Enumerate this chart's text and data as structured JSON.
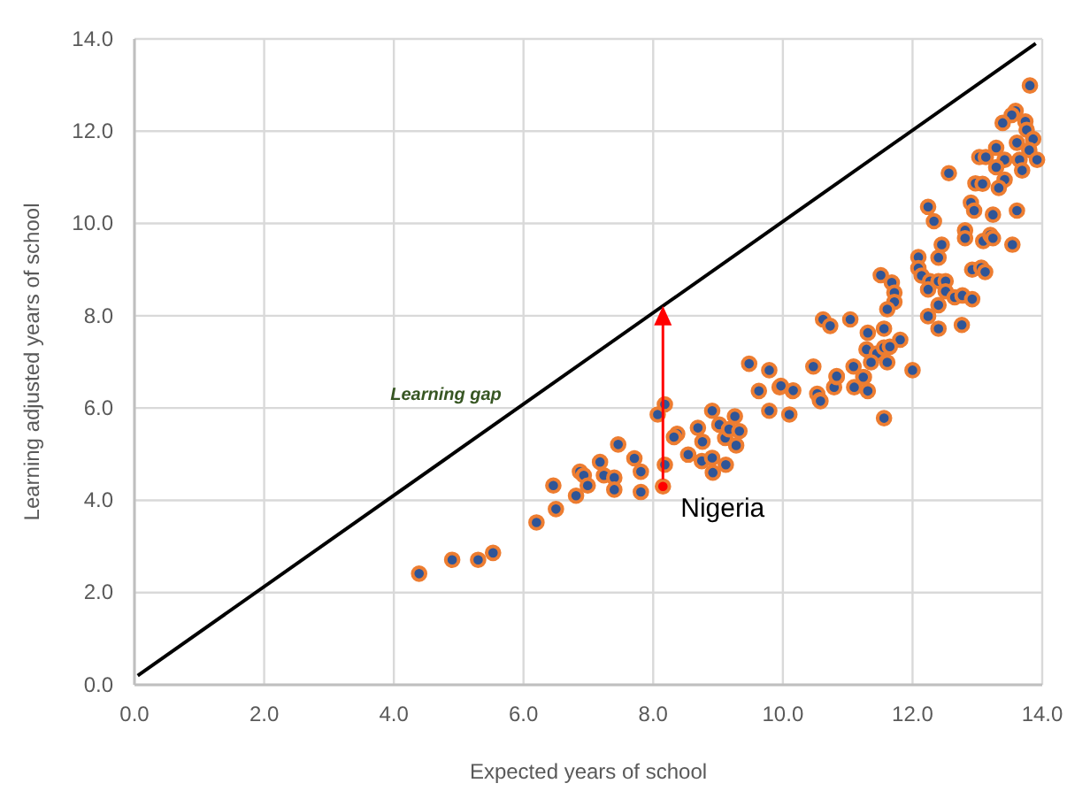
{
  "chart_data": {
    "type": "scatter",
    "xlabel": "Expected  years of school",
    "ylabel": "Learning adjusted years of school",
    "xlim": [
      0,
      14
    ],
    "ylim": [
      0,
      14
    ],
    "xticks": [
      {
        "value": 0,
        "label": "0.0"
      },
      {
        "value": 2,
        "label": "2.0"
      },
      {
        "value": 4,
        "label": "4.0"
      },
      {
        "value": 6,
        "label": "6.0"
      },
      {
        "value": 8,
        "label": "8.0"
      },
      {
        "value": 10,
        "label": "10.0"
      },
      {
        "value": 12,
        "label": "12.0"
      },
      {
        "value": 14,
        "label": "14.0"
      }
    ],
    "yticks": [
      {
        "value": 0,
        "label": "0.0"
      },
      {
        "value": 2,
        "label": "2.0"
      },
      {
        "value": 4,
        "label": "4.0"
      },
      {
        "value": 6,
        "label": "6.0"
      },
      {
        "value": 8,
        "label": "8.0"
      },
      {
        "value": 10,
        "label": "10.0"
      },
      {
        "value": 12,
        "label": "12.0"
      },
      {
        "value": 14,
        "label": "14.0"
      }
    ],
    "grid": true,
    "marker": "circle",
    "annotations": [
      "Learning gap"
    ],
    "series": [
      {
        "type": "line",
        "color": "#000000",
        "x": [
          0.05,
          13.9
        ],
        "values": [
          0.2,
          13.9
        ],
        "marker": "none"
      },
      {
        "color": "#2f5597",
        "x": [
          4.39,
          4.9,
          5.3,
          5.53,
          6.2,
          6.5,
          6.46,
          6.81,
          6.87,
          6.93,
          6.99,
          7.18,
          7.24,
          7.4,
          7.4,
          7.46,
          7.71,
          7.81,
          7.81,
          8.07,
          8.18,
          8.18,
          8.37,
          8.32,
          8.54,
          8.69,
          8.76,
          8.75,
          8.91,
          8.91,
          8.92,
          9.02,
          9.11,
          9.12,
          9.17,
          9.26,
          9.28,
          9.33,
          9.48,
          9.63,
          9.79,
          9.79,
          9.95,
          10.1,
          10.15,
          10.47,
          10.53,
          10.57,
          10.79,
          10.83,
          11.09,
          11.1,
          11.25,
          11.31,
          11.56,
          12.0,
          13.81,
          13.59,
          13.53,
          13.39,
          13.74,
          13.76,
          13.86,
          13.61,
          13.8,
          13.92,
          13.29,
          13.03,
          13.13,
          13.42,
          13.65,
          13.29,
          13.69,
          12.56,
          12.97,
          13.08,
          13.42,
          13.33,
          12.9,
          12.95,
          12.24,
          12.33,
          13.24,
          13.61,
          12.81,
          12.81,
          13.09,
          13.2,
          13.24,
          13.54,
          12.45,
          12.09,
          12.4,
          12.09,
          12.14,
          12.27,
          12.4,
          12.51,
          12.24,
          12.51,
          12.65,
          12.77,
          12.92,
          12.92,
          13.06,
          13.12,
          12.4,
          12.24,
          12.4,
          12.76,
          11.51,
          11.68,
          11.72,
          11.72,
          11.61,
          10.62,
          10.73,
          11.04,
          11.31,
          11.56,
          11.81,
          11.29,
          11.45,
          11.56,
          11.65,
          11.36,
          11.61,
          10.83,
          11.24,
          9.97,
          10.16,
          10.58
        ],
        "values": [
          2.41,
          2.71,
          2.71,
          2.86,
          3.52,
          3.81,
          4.32,
          4.1,
          4.62,
          4.54,
          4.32,
          4.83,
          4.54,
          4.49,
          4.23,
          5.21,
          4.91,
          4.62,
          4.18,
          5.86,
          6.08,
          4.77,
          5.44,
          5.37,
          4.99,
          5.57,
          5.27,
          4.85,
          5.94,
          4.92,
          4.6,
          5.64,
          5.35,
          4.77,
          5.54,
          5.82,
          5.19,
          5.5,
          6.96,
          6.37,
          6.82,
          5.94,
          6.45,
          5.86,
          6.37,
          6.9,
          6.31,
          6.17,
          6.45,
          6.67,
          6.9,
          6.45,
          6.67,
          6.37,
          5.78,
          6.82,
          12.99,
          12.44,
          12.35,
          12.18,
          12.21,
          12.03,
          11.83,
          11.75,
          11.59,
          11.38,
          11.64,
          11.44,
          11.44,
          11.38,
          11.38,
          11.22,
          11.15,
          11.09,
          10.87,
          10.86,
          10.95,
          10.77,
          10.45,
          10.28,
          10.36,
          10.05,
          10.19,
          10.28,
          9.85,
          9.68,
          9.62,
          9.75,
          9.68,
          9.54,
          9.54,
          9.27,
          9.26,
          9.03,
          8.87,
          8.75,
          8.75,
          8.75,
          8.57,
          8.53,
          8.4,
          8.44,
          8.36,
          9.0,
          9.04,
          8.95,
          8.23,
          7.99,
          7.72,
          7.8,
          8.88,
          8.72,
          8.5,
          8.3,
          8.14,
          7.92,
          7.78,
          7.92,
          7.63,
          7.72,
          7.48,
          7.27,
          7.18,
          7.31,
          7.33,
          6.99,
          6.99,
          6.69,
          6.67,
          6.48,
          6.38,
          6.15
        ]
      },
      {
        "name": "Nigeria",
        "color": "#ff0000",
        "x": [
          8.15
        ],
        "values": [
          4.3
        ]
      }
    ]
  }
}
